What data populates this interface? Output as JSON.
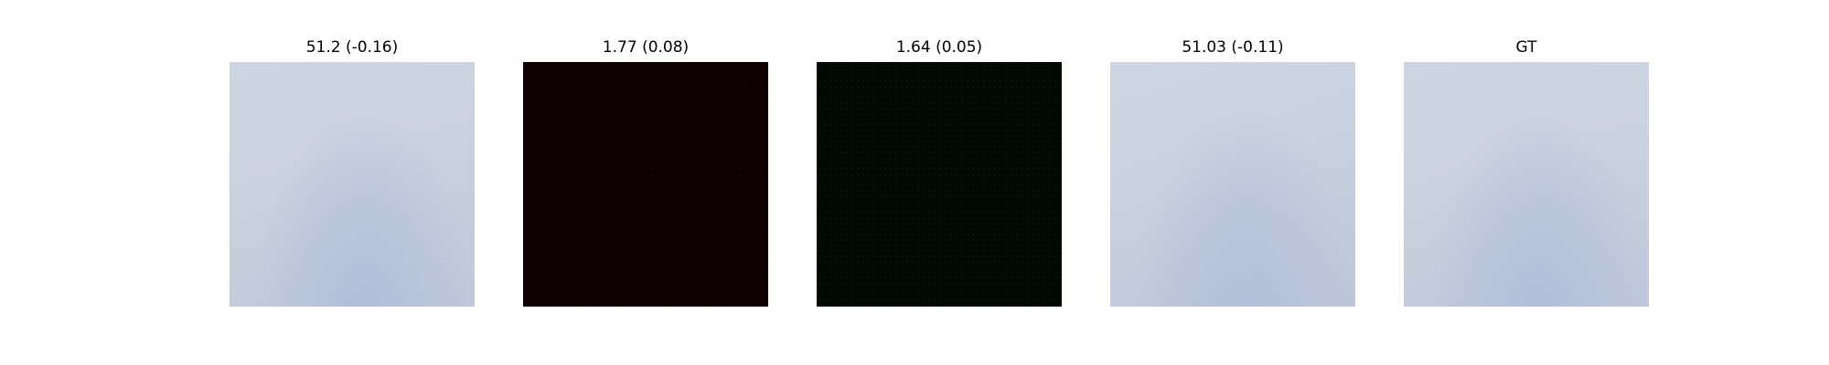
{
  "panels": [
    {
      "title": "51.2 (-0.16)",
      "image": "light-blue-gray-sky"
    },
    {
      "title": "1.77 (0.08)",
      "image": "near-black-dark-red"
    },
    {
      "title": "1.64 (0.05)",
      "image": "near-black-dark-green"
    },
    {
      "title": "51.03 (-0.11)",
      "image": "light-blue-gray-sky"
    },
    {
      "title": "GT",
      "image": "light-blue-gray-sky"
    }
  ],
  "colors": {
    "background": "#ffffff",
    "sky_light": "#cdd5e1",
    "sky_bottom": "#b0bdd9",
    "dark_red": "#0e0001",
    "dark_green": "#000901"
  }
}
